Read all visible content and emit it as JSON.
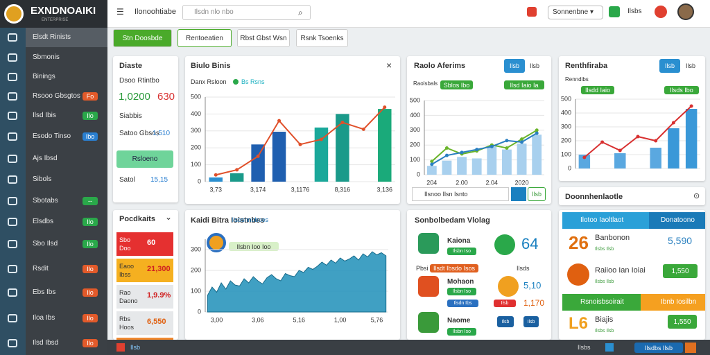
{
  "header": {
    "logo": "EXNDNOAIKI",
    "logo_sub": "ENTERPRISE",
    "menu_icon": "☰",
    "breadcrumb": "Ilonoohtiabe",
    "search": "Ilsdn nlo nbo",
    "search_icon": "⌕",
    "select": "Sonnenbne ▾",
    "notice": "Ilsbs"
  },
  "sidebar": {
    "items": [
      {
        "label": "Elsdt Rinists"
      },
      {
        "label": "Sbmonis"
      },
      {
        "label": "Binings"
      },
      {
        "label": "Rsooo Gbsgtos",
        "badge": "Fo"
      },
      {
        "label": "Ilsd Ibis",
        "badge": "Ilo"
      },
      {
        "label": "Esodo Tinso",
        "badge": "Ibo"
      },
      {
        "label": "Ajs Ibsd"
      },
      {
        "label": "Sibols"
      },
      {
        "label": "Sbotabs",
        "badge": "--"
      },
      {
        "label": "Elsdbs",
        "badge": "Ilo"
      },
      {
        "label": "Sbo Ilsd",
        "badge": "Ilo"
      },
      {
        "label": "Rsdit",
        "badge": "Ilo"
      },
      {
        "label": "Ebs Ibs",
        "badge": "Ilo"
      },
      {
        "label": "Iloa Ibs",
        "badge": "Ilo"
      },
      {
        "label": "Ilsd Ibsd",
        "badge": "Ilo"
      }
    ]
  },
  "tabs": [
    "Stn Doosbde",
    "Rentoeatien",
    "Rbst Gbst Wsn",
    "Rsnk Tsoenks"
  ],
  "summary": {
    "title": "Diaste",
    "subtitle": "Dsoo Rtintbo",
    "value_a": "1,0200",
    "value_b": "630",
    "section": "Siabbis",
    "row_label": "Satoo Gbsos",
    "row_value": "1,510",
    "button": "Rsloeno",
    "total_label": "Satol",
    "total_value": "15,15"
  },
  "bar_card": {
    "title": "Biulo Binis",
    "close": "×",
    "legend_a": "Danx Rsloon",
    "legend_b": "Bs Rsns",
    "chart": {
      "type": "combo",
      "ylim": [
        0,
        500
      ],
      "yticks": [
        0,
        100,
        200,
        300,
        400,
        500
      ],
      "categories": [
        "3,73",
        null,
        "3,174",
        null,
        "3,1176",
        null,
        "8,316",
        null,
        "3,136"
      ],
      "bars": {
        "values": [
          25,
          50,
          220,
          295,
          null,
          320,
          400,
          null,
          430
        ],
        "colors": [
          "#2a8fd0",
          "#1a9a8a",
          "#1f5fb0",
          "#1f5fb0",
          null,
          "#1aa89a",
          "#1a9a8a",
          null,
          "#1aaa7a"
        ]
      },
      "lines": [
        {
          "color": "#e0502a",
          "values": [
            40,
            70,
            150,
            360,
            220,
            250,
            350,
            310,
            440
          ]
        }
      ]
    }
  },
  "ratio_card": {
    "title": "Raolo Aferims",
    "toggle_a": "Ilsb",
    "toggle_b": "Ilsb",
    "legend": "Raolsbals",
    "tag_a": "Sblos Ibo",
    "tag_b": "Ilsd Iaio Ia",
    "search": "Ilsnoo Ilsn Isnto",
    "tag_c": "Ilsb",
    "chart": {
      "type": "combo",
      "ylim": [
        0,
        500
      ],
      "yticks": [
        0,
        100,
        200,
        300,
        400,
        500
      ],
      "categories": [
        "204",
        null,
        "2.00",
        null,
        "2.04",
        null,
        "2020",
        null
      ],
      "bars": {
        "values": [
          60,
          95,
          120,
          110,
          190,
          170,
          210,
          270
        ],
        "colors": [
          "#a8d0ee",
          "#a8d0ee",
          "#a8d0ee",
          "#a8d0ee",
          "#a8d0ee",
          "#a8d0ee",
          "#a8d0ee",
          "#a8d0ee"
        ]
      },
      "lines": [
        {
          "color": "#6ab42a",
          "values": [
            90,
            180,
            140,
            160,
            200,
            180,
            240,
            300
          ]
        },
        {
          "color": "#2a7fc0",
          "values": [
            70,
            130,
            150,
            170,
            190,
            230,
            220,
            280
          ]
        }
      ]
    }
  },
  "trend_card": {
    "title": "Renthfiraba",
    "toggle_a": "Ilsb",
    "toggle_b": "Ilsb",
    "legend": "Renndibs",
    "tag_a": "Ilsdd Iaio",
    "tag_b": "Ilsds Ibo",
    "chart": {
      "type": "combo",
      "ylim": [
        0,
        500
      ],
      "yticks": [
        0,
        100,
        200,
        300,
        400,
        500
      ],
      "categories": [
        null,
        null,
        null,
        null,
        null,
        null,
        null
      ],
      "bars": {
        "values": [
          100,
          0,
          110,
          0,
          150,
          290,
          430
        ],
        "colors": [
          "#5aa8e0",
          null,
          "#5aa8e0",
          null,
          "#5aa8e0",
          "#3a98d8",
          "#3a98d8"
        ]
      },
      "lines": [
        {
          "color": "#d83030",
          "values": [
            80,
            190,
            130,
            230,
            200,
            330,
            450
          ]
        }
      ]
    }
  },
  "side_header": {
    "title": "Doonnhenlaotle",
    "icon": "⊙"
  },
  "products": {
    "title": "Pocdkaits",
    "chevron": "⌄",
    "items": [
      {
        "label": "Sbo Doo",
        "value": "60"
      },
      {
        "label": "Eaoo Ibss",
        "value": "21,300"
      },
      {
        "label": "Rao Daono",
        "value": "1,9.9%"
      },
      {
        "label": "Rbs Hoos",
        "value": "6,550"
      }
    ]
  },
  "area_card": {
    "title": "Kaidi Bitra Ioistnbes",
    "legend": "Ilsosnnoboos",
    "tag": "Ilsbn Ioo Ioo",
    "chart": {
      "type": "area",
      "ylim": [
        0,
        350
      ],
      "yticks": [
        0,
        100,
        200,
        300
      ],
      "color": "#1f8fb8",
      "categories": [
        null,
        null,
        "3,00",
        null,
        null,
        null,
        null,
        null,
        null,
        null,
        null,
        "3,06",
        null,
        null,
        null,
        null,
        null,
        null,
        null,
        null,
        "5,16",
        null,
        null,
        null,
        null,
        null,
        null,
        null,
        null,
        "1,00",
        null,
        null,
        null,
        null,
        null,
        null,
        null,
        "5,76",
        null,
        null
      ],
      "values": [
        80,
        120,
        95,
        140,
        110,
        150,
        130,
        125,
        160,
        140,
        170,
        150,
        135,
        165,
        180,
        160,
        150,
        185,
        175,
        170,
        200,
        190,
        215,
        205,
        220,
        240,
        225,
        250,
        235,
        260,
        245,
        255,
        270,
        250,
        280,
        265,
        290,
        275,
        285,
        270
      ]
    }
  },
  "social": {
    "title": "Sonbolbedam Vlolag",
    "row1_name": "Kaiona",
    "row1_tag": "Ilsbn Iso",
    "row1_value": "64",
    "sub_label": "Pbsi",
    "sub_tag": "Ilsdt Ibsdo Isos",
    "sub_right": "Ilsds",
    "row2_name": "Mohaon",
    "row2_tag": "Ilsbn Iso",
    "row2_tag_b": "Ilsdn Ibs",
    "row2_value": "5,10",
    "row2_red": "Ilsb",
    "row2_value_b": "1,170",
    "row3_name": "Naome",
    "row3_tag": "Ilsbn Iso",
    "row3_box": "Ilsb",
    "row3_box_b": "Ilsb"
  },
  "notes": {
    "bar_a": "Ilotoo Iaoltlaot",
    "bar_a_right": "Donatoono",
    "big_a": "26",
    "name_a": "Banbonon",
    "sub_a": "Ilsbs Ilsb",
    "value_a": "5,590",
    "name_b": "Raiioo Ian Ioiai",
    "sub_b": "Ilsbs Ilsb",
    "value_b": "1,550",
    "bar_b": "Rsnoisbsoirait",
    "bar_b_right": "Ibnb Iosilbn",
    "big_c": "L6",
    "name_c": "Biajis",
    "sub_c": "Ilsbs Ilsb",
    "value_c": "1,550"
  },
  "footer": {
    "left": "Ilsb",
    "right_a": "Ilsbs",
    "right_b": "Ilsdbs Ilsb"
  }
}
